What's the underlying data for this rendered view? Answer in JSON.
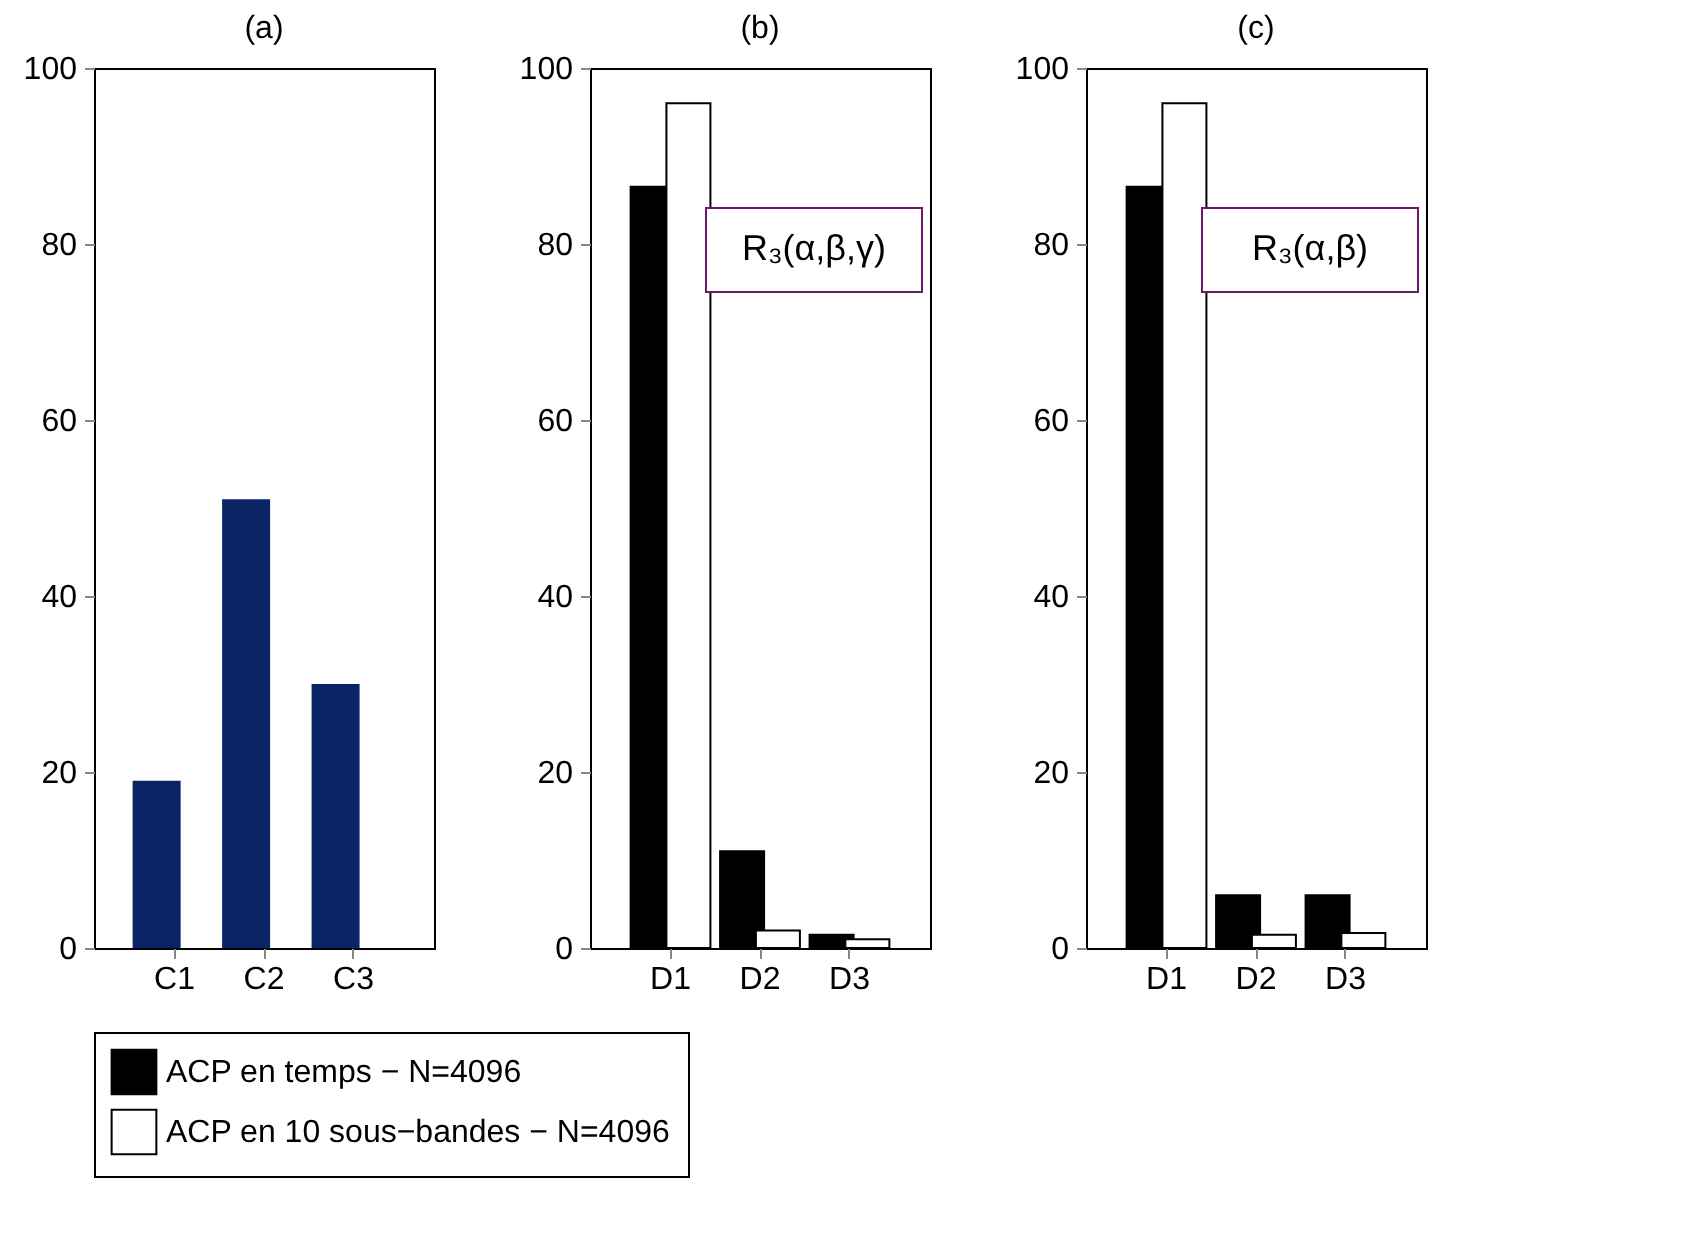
{
  "chart_data": [
    {
      "type": "bar",
      "title": "(a)",
      "categories": [
        "C1",
        "C2",
        "C3"
      ],
      "values": [
        19,
        51,
        30
      ],
      "color": "#0b2466",
      "ylim": [
        0,
        100
      ],
      "yticks": [
        0,
        20,
        40,
        60,
        80,
        100
      ],
      "grid": false
    },
    {
      "type": "bar",
      "title": "(b)",
      "categories": [
        "D1",
        "D2",
        "D3"
      ],
      "series": [
        {
          "name": "ACP en temps − N=4096",
          "color": "#000000",
          "values": [
            86.5,
            11,
            1.5
          ]
        },
        {
          "name": "ACP en 10 sous−bandes − N=4096",
          "color": "#ffffff",
          "values": [
            96,
            2,
            1
          ]
        }
      ],
      "annotations": [
        "R₃(α,β,γ)"
      ],
      "ylim": [
        0,
        100
      ],
      "yticks": [
        0,
        20,
        40,
        60,
        80,
        100
      ],
      "grid": false,
      "legend": "bottom"
    },
    {
      "type": "bar",
      "title": "(c)",
      "categories": [
        "D1",
        "D2",
        "D3"
      ],
      "series": [
        {
          "name": "ACP en temps − N=4096",
          "color": "#000000",
          "values": [
            86.5,
            6,
            6
          ]
        },
        {
          "name": "ACP en 10 sous−bandes − N=4096",
          "color": "#ffffff",
          "values": [
            96,
            1.5,
            1.7
          ]
        }
      ],
      "annotations": [
        "R₃(α,β)"
      ],
      "ylim": [
        0,
        100
      ],
      "yticks": [
        0,
        20,
        40,
        60,
        80,
        100
      ],
      "grid": false,
      "legend": "bottom"
    }
  ]
}
